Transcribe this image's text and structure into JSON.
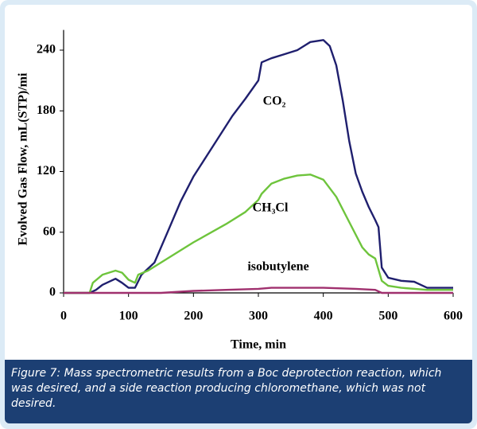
{
  "chart_data": {
    "type": "line",
    "x_label": "Time, min",
    "y_label": "Evolved Gas Flow, mL(STP)/mi",
    "caption": "Figure 7: Mass spectrometric results from a Boc deprotection reaction, which was desired, and a side reaction producing chloromethane, which was not desired.",
    "xlim": [
      0,
      600
    ],
    "xticks": [
      0,
      100,
      200,
      300,
      400,
      500,
      600
    ],
    "ylim": [
      0,
      260
    ],
    "yticks": [
      0,
      60,
      120,
      180,
      240
    ],
    "series": [
      {
        "name": "CO₂",
        "color": "#1f1f6e",
        "x": [
          0,
          40,
          50,
          60,
          80,
          90,
          100,
          110,
          120,
          140,
          160,
          180,
          200,
          220,
          240,
          260,
          280,
          300,
          305,
          320,
          340,
          360,
          380,
          400,
          410,
          420,
          430,
          440,
          450,
          460,
          470,
          480,
          485,
          490,
          500,
          520,
          540,
          550,
          560,
          600
        ],
        "values": [
          0,
          0,
          3,
          8,
          14,
          10,
          5,
          5,
          18,
          30,
          60,
          90,
          115,
          135,
          155,
          175,
          192,
          210,
          228,
          232,
          236,
          240,
          248,
          250,
          244,
          225,
          190,
          150,
          118,
          100,
          85,
          72,
          65,
          25,
          15,
          12,
          11,
          8,
          5,
          5
        ]
      },
      {
        "name": "CH₃Cl",
        "color": "#6ec43c",
        "x": [
          0,
          40,
          45,
          60,
          80,
          90,
          100,
          110,
          115,
          130,
          150,
          180,
          200,
          250,
          280,
          300,
          305,
          320,
          340,
          360,
          380,
          400,
          420,
          440,
          460,
          470,
          480,
          490,
          500,
          520,
          560,
          600
        ],
        "values": [
          0,
          0,
          10,
          18,
          22,
          20,
          13,
          10,
          18,
          22,
          30,
          42,
          50,
          68,
          80,
          92,
          98,
          108,
          113,
          116,
          117,
          112,
          95,
          70,
          45,
          38,
          34,
          12,
          7,
          5,
          3,
          3
        ]
      },
      {
        "name": "isobutylene",
        "color": "#a0306e",
        "x": [
          0,
          150,
          200,
          250,
          300,
          320,
          400,
          450,
          480,
          490,
          600
        ],
        "values": [
          0,
          0,
          2,
          3,
          4,
          5,
          5,
          4,
          3,
          0,
          0
        ]
      }
    ]
  }
}
